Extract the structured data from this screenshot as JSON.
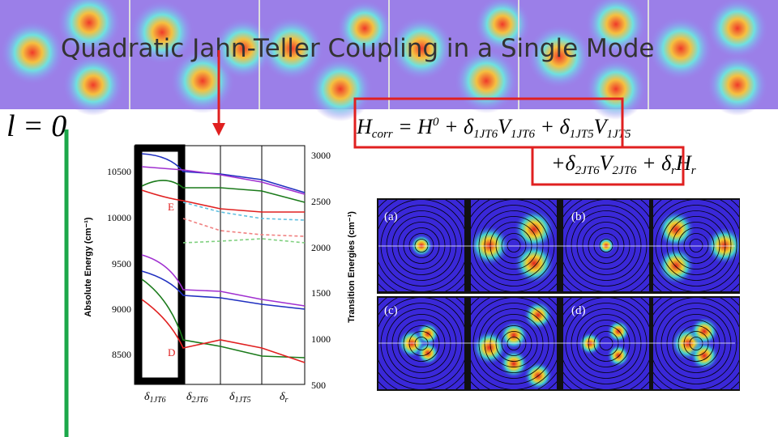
{
  "header": {
    "title": "Quadratic Jahn-Teller Coupling in a Single Mode",
    "label": "l = 0"
  },
  "equation": {
    "line1": [
      "H",
      "corr",
      " = H",
      "0",
      " + δ",
      "1JT6",
      "V",
      "1JT6",
      " + δ",
      "1JT5",
      "V",
      "1JT5"
    ],
    "line2": [
      "+δ",
      "2JT6",
      "V",
      "2JT6",
      " + δ",
      "r",
      "H",
      "r"
    ]
  },
  "figure": {
    "left_axis_title": "Absolute Energy (cm⁻¹)",
    "right_axis_title": "Transition Energies (cm⁻¹)",
    "left_ticks": [
      "10500",
      "10000",
      "9500",
      "9000",
      "8500"
    ],
    "right_ticks": [
      "3000",
      "2500",
      "2000",
      "1500",
      "1000",
      "500"
    ],
    "x_labels": [
      [
        "δ",
        "1JT6"
      ],
      [
        "δ",
        "2JT6"
      ],
      [
        "δ",
        "1JT5"
      ],
      [
        "δ",
        "r"
      ]
    ],
    "state_labels": [
      "E",
      "D"
    ]
  },
  "panels": [
    "(a)",
    "(b)",
    "(c)",
    "(d)"
  ]
}
